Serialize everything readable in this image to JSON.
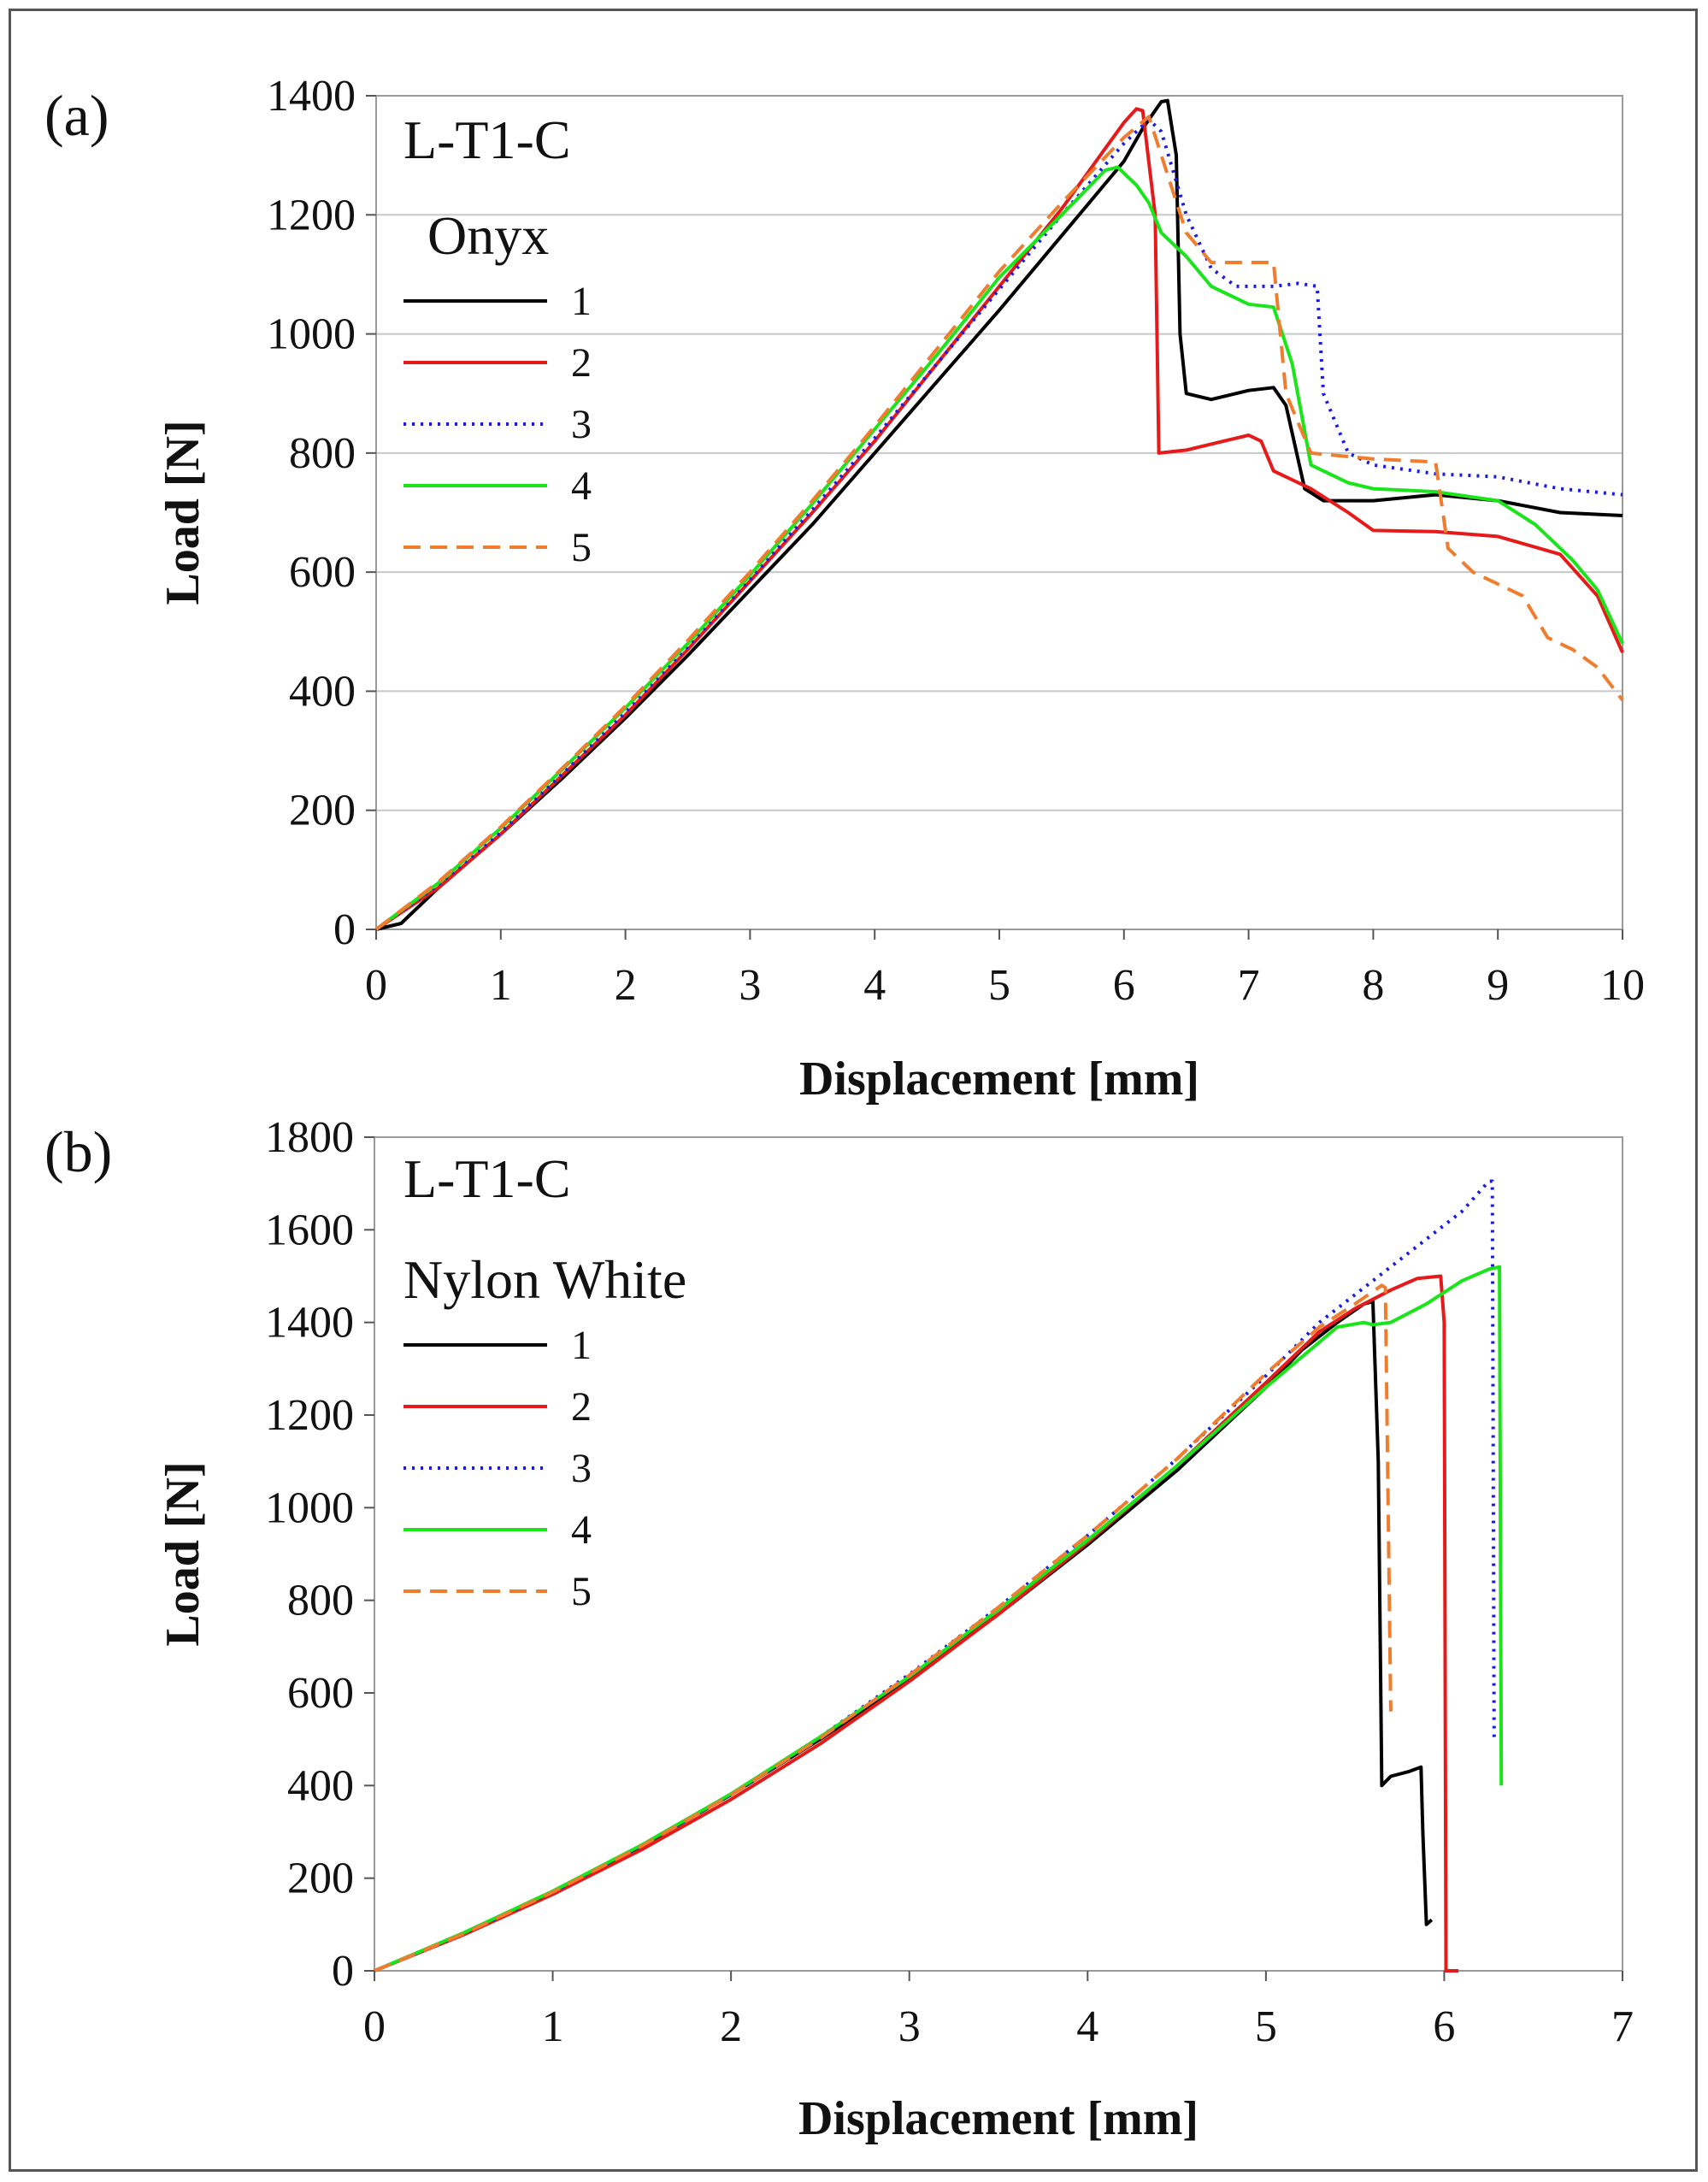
{
  "chart_data": [
    {
      "type": "line",
      "panel_label": "(a)",
      "annotations": [
        "L-T1-C",
        "Onyx"
      ],
      "xlabel": "Displacement [mm]",
      "ylabel": "Load [N]",
      "xlim": [
        0,
        10
      ],
      "ylim": [
        0,
        1400
      ],
      "xticks": [
        "0",
        "1",
        "2",
        "3",
        "4",
        "5",
        "6",
        "7",
        "8",
        "9",
        "10"
      ],
      "yticks": [
        "0",
        "200",
        "400",
        "600",
        "800",
        "1000",
        "1200",
        "1400"
      ],
      "grid": "y-major",
      "legend_position": "top-left",
      "series": [
        {
          "name": "1",
          "color": "#000000",
          "dash": "solid",
          "points": [
            [
              0,
              0
            ],
            [
              0.2,
              10
            ],
            [
              0.5,
              70
            ],
            [
              1,
              160
            ],
            [
              1.5,
              255
            ],
            [
              2,
              355
            ],
            [
              2.5,
              460
            ],
            [
              3,
              570
            ],
            [
              3.5,
              680
            ],
            [
              4,
              800
            ],
            [
              4.5,
              920
            ],
            [
              5,
              1040
            ],
            [
              5.5,
              1165
            ],
            [
              6,
              1290
            ],
            [
              6.15,
              1345
            ],
            [
              6.3,
              1390
            ],
            [
              6.35,
              1392
            ],
            [
              6.42,
              1300
            ],
            [
              6.45,
              1000
            ],
            [
              6.5,
              900
            ],
            [
              6.7,
              890
            ],
            [
              7,
              905
            ],
            [
              7.2,
              910
            ],
            [
              7.3,
              880
            ],
            [
              7.45,
              740
            ],
            [
              7.6,
              720
            ],
            [
              8,
              720
            ],
            [
              8.5,
              730
            ],
            [
              9,
              720
            ],
            [
              9.5,
              700
            ],
            [
              10,
              695
            ]
          ]
        },
        {
          "name": "2",
          "color": "#e51a1a",
          "dash": "solid",
          "points": [
            [
              0,
              0
            ],
            [
              0.5,
              70
            ],
            [
              1,
              160
            ],
            [
              1.5,
              260
            ],
            [
              2,
              360
            ],
            [
              2.5,
              470
            ],
            [
              3,
              585
            ],
            [
              3.5,
              700
            ],
            [
              4,
              820
            ],
            [
              4.5,
              950
            ],
            [
              5,
              1080
            ],
            [
              5.5,
              1210
            ],
            [
              6,
              1355
            ],
            [
              6.1,
              1378
            ],
            [
              6.15,
              1375
            ],
            [
              6.25,
              1200
            ],
            [
              6.28,
              800
            ],
            [
              6.5,
              805
            ],
            [
              6.8,
              820
            ],
            [
              7,
              830
            ],
            [
              7.1,
              820
            ],
            [
              7.2,
              770
            ],
            [
              7.5,
              740
            ],
            [
              7.8,
              700
            ],
            [
              8,
              670
            ],
            [
              8.5,
              668
            ],
            [
              9,
              660
            ],
            [
              9.5,
              630
            ],
            [
              9.8,
              560
            ],
            [
              10,
              465
            ]
          ]
        },
        {
          "name": "3",
          "color": "#1a1ae5",
          "dash": "dotted",
          "points": [
            [
              0,
              0
            ],
            [
              0.5,
              75
            ],
            [
              1,
              163
            ],
            [
              1.5,
              262
            ],
            [
              2,
              365
            ],
            [
              2.5,
              475
            ],
            [
              3,
              588
            ],
            [
              3.5,
              705
            ],
            [
              4,
              825
            ],
            [
              4.5,
              950
            ],
            [
              5,
              1075
            ],
            [
              5.5,
              1200
            ],
            [
              6,
              1320
            ],
            [
              6.2,
              1360
            ],
            [
              6.3,
              1340
            ],
            [
              6.5,
              1200
            ],
            [
              6.7,
              1110
            ],
            [
              6.9,
              1080
            ],
            [
              7.2,
              1080
            ],
            [
              7.4,
              1085
            ],
            [
              7.55,
              1080
            ],
            [
              7.6,
              900
            ],
            [
              7.8,
              800
            ],
            [
              8,
              780
            ],
            [
              8.5,
              765
            ],
            [
              9,
              760
            ],
            [
              9.5,
              740
            ],
            [
              10,
              730
            ]
          ]
        },
        {
          "name": "4",
          "color": "#1ae51a",
          "dash": "solid",
          "points": [
            [
              0,
              0
            ],
            [
              0.5,
              78
            ],
            [
              1,
              170
            ],
            [
              1.5,
              270
            ],
            [
              2,
              372
            ],
            [
              2.5,
              480
            ],
            [
              3,
              595
            ],
            [
              3.5,
              715
            ],
            [
              4,
              840
            ],
            [
              4.5,
              965
            ],
            [
              5,
              1095
            ],
            [
              5.5,
              1200
            ],
            [
              5.85,
              1275
            ],
            [
              5.95,
              1280
            ],
            [
              6.1,
              1250
            ],
            [
              6.2,
              1220
            ],
            [
              6.3,
              1170
            ],
            [
              6.5,
              1130
            ],
            [
              6.7,
              1080
            ],
            [
              7,
              1050
            ],
            [
              7.2,
              1045
            ],
            [
              7.35,
              950
            ],
            [
              7.5,
              780
            ],
            [
              7.8,
              750
            ],
            [
              8,
              740
            ],
            [
              8.5,
              735
            ],
            [
              9,
              720
            ],
            [
              9.3,
              680
            ],
            [
              9.6,
              620
            ],
            [
              9.8,
              570
            ],
            [
              10,
              480
            ]
          ]
        },
        {
          "name": "5",
          "color": "#f07d2e",
          "dash": "dashed",
          "points": [
            [
              0,
              0
            ],
            [
              0.5,
              80
            ],
            [
              1,
              172
            ],
            [
              1.5,
              272
            ],
            [
              2,
              375
            ],
            [
              2.5,
              485
            ],
            [
              3,
              600
            ],
            [
              3.5,
              720
            ],
            [
              4,
              845
            ],
            [
              4.5,
              975
            ],
            [
              5,
              1105
            ],
            [
              5.5,
              1220
            ],
            [
              6,
              1330
            ],
            [
              6.2,
              1365
            ],
            [
              6.3,
              1300
            ],
            [
              6.5,
              1170
            ],
            [
              6.7,
              1120
            ],
            [
              7,
              1120
            ],
            [
              7.2,
              1120
            ],
            [
              7.3,
              900
            ],
            [
              7.5,
              800
            ],
            [
              8,
              790
            ],
            [
              8.5,
              785
            ],
            [
              8.6,
              640
            ],
            [
              8.8,
              600
            ],
            [
              9,
              580
            ],
            [
              9.2,
              560
            ],
            [
              9.4,
              490
            ],
            [
              9.6,
              470
            ],
            [
              9.8,
              440
            ],
            [
              10,
              385
            ]
          ]
        }
      ]
    },
    {
      "type": "line",
      "panel_label": "(b)",
      "annotations": [
        "L-T1-C",
        "Nylon White"
      ],
      "xlabel": "Displacement [mm]",
      "ylabel": "Load [N]",
      "xlim": [
        0,
        7
      ],
      "ylim": [
        0,
        1800
      ],
      "xticks": [
        "0",
        "1",
        "2",
        "3",
        "4",
        "5",
        "6",
        "7"
      ],
      "yticks": [
        "0",
        "200",
        "400",
        "600",
        "800",
        "1000",
        "1200",
        "1400",
        "1600",
        "1800"
      ],
      "grid": "none",
      "legend_position": "top-left",
      "series": [
        {
          "name": "1",
          "color": "#000000",
          "dash": "solid",
          "points": [
            [
              0,
              0
            ],
            [
              0.5,
              80
            ],
            [
              1,
              170
            ],
            [
              1.5,
              270
            ],
            [
              2,
              380
            ],
            [
              2.5,
              500
            ],
            [
              3,
              630
            ],
            [
              3.5,
              770
            ],
            [
              4,
              920
            ],
            [
              4.5,
              1080
            ],
            [
              5,
              1260
            ],
            [
              5.2,
              1340
            ],
            [
              5.4,
              1400
            ],
            [
              5.55,
              1440
            ],
            [
              5.6,
              1445
            ],
            [
              5.63,
              1100
            ],
            [
              5.65,
              400
            ],
            [
              5.7,
              420
            ],
            [
              5.8,
              430
            ],
            [
              5.87,
              440
            ],
            [
              5.88,
              300
            ],
            [
              5.9,
              100
            ],
            [
              5.93,
              110
            ]
          ]
        },
        {
          "name": "2",
          "color": "#e51a1a",
          "dash": "solid",
          "points": [
            [
              0,
              0
            ],
            [
              0.5,
              78
            ],
            [
              1,
              165
            ],
            [
              1.5,
              262
            ],
            [
              2,
              370
            ],
            [
              2.5,
              490
            ],
            [
              3,
              625
            ],
            [
              3.5,
              770
            ],
            [
              4,
              925
            ],
            [
              4.5,
              1090
            ],
            [
              5,
              1270
            ],
            [
              5.3,
              1380
            ],
            [
              5.5,
              1430
            ],
            [
              5.7,
              1470
            ],
            [
              5.85,
              1495
            ],
            [
              5.98,
              1500
            ],
            [
              6,
              1400
            ],
            [
              6.01,
              0
            ],
            [
              6.08,
              0
            ]
          ]
        },
        {
          "name": "3",
          "color": "#1a1ae5",
          "dash": "dotted",
          "points": [
            [
              0,
              0
            ],
            [
              0.5,
              80
            ],
            [
              1,
              170
            ],
            [
              1.5,
              270
            ],
            [
              2,
              380
            ],
            [
              2.5,
              505
            ],
            [
              3,
              640
            ],
            [
              3.5,
              785
            ],
            [
              4,
              940
            ],
            [
              4.5,
              1105
            ],
            [
              5,
              1285
            ],
            [
              5.3,
              1400
            ],
            [
              5.6,
              1490
            ],
            [
              5.9,
              1580
            ],
            [
              6.1,
              1640
            ],
            [
              6.25,
              1705
            ],
            [
              6.27,
              1705
            ],
            [
              6.28,
              500
            ]
          ]
        },
        {
          "name": "4",
          "color": "#1ae51a",
          "dash": "solid",
          "points": [
            [
              0,
              0
            ],
            [
              0.5,
              82
            ],
            [
              1,
              172
            ],
            [
              1.5,
              272
            ],
            [
              2,
              382
            ],
            [
              2.5,
              505
            ],
            [
              3,
              635
            ],
            [
              3.5,
              780
            ],
            [
              4,
              930
            ],
            [
              4.5,
              1090
            ],
            [
              5,
              1260
            ],
            [
              5.4,
              1390
            ],
            [
              5.55,
              1400
            ],
            [
              5.6,
              1395
            ],
            [
              5.7,
              1400
            ],
            [
              5.9,
              1440
            ],
            [
              6.1,
              1490
            ],
            [
              6.25,
              1515
            ],
            [
              6.31,
              1520
            ],
            [
              6.32,
              400
            ]
          ]
        },
        {
          "name": "5",
          "color": "#f07d2e",
          "dash": "dashed",
          "points": [
            [
              0,
              0
            ],
            [
              0.5,
              80
            ],
            [
              1,
              170
            ],
            [
              1.5,
              270
            ],
            [
              2,
              380
            ],
            [
              2.5,
              502
            ],
            [
              3,
              638
            ],
            [
              3.5,
              785
            ],
            [
              4,
              940
            ],
            [
              4.5,
              1105
            ],
            [
              5,
              1290
            ],
            [
              5.3,
              1390
            ],
            [
              5.5,
              1440
            ],
            [
              5.65,
              1480
            ],
            [
              5.67,
              1475
            ],
            [
              5.7,
              560
            ]
          ]
        }
      ]
    }
  ]
}
